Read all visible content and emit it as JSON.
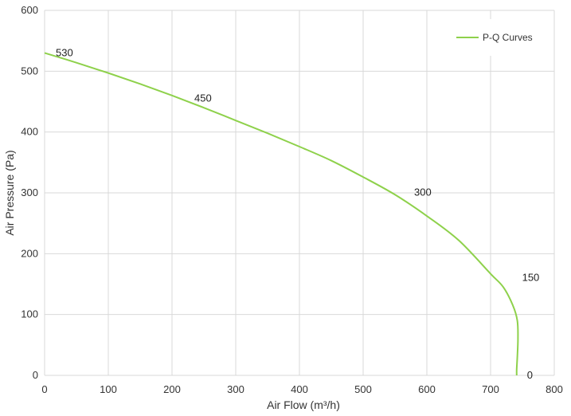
{
  "chart_data": {
    "type": "line",
    "title": "",
    "xlabel": "Air Flow  (m³/h)",
    "ylabel": "Air Pressure  (Pa)",
    "xlim": [
      0,
      800
    ],
    "ylim": [
      0,
      600
    ],
    "xticks": [
      0,
      100,
      200,
      300,
      400,
      500,
      600,
      700,
      800
    ],
    "yticks": [
      0,
      100,
      200,
      300,
      400,
      500,
      600
    ],
    "grid": true,
    "legend_position": "top-right",
    "series": [
      {
        "name": "P-Q Curves",
        "color": "#8ed14b",
        "x": [
          0,
          50,
          100,
          150,
          200,
          250,
          300,
          350,
          400,
          450,
          500,
          550,
          600,
          650,
          700,
          720,
          735,
          742,
          743,
          742,
          741,
          741
        ],
        "y": [
          530,
          514,
          497,
          479,
          460,
          440,
          419,
          398,
          376,
          353,
          326,
          297,
          262,
          222,
          167,
          145,
          115,
          90,
          60,
          30,
          10,
          0
        ]
      }
    ],
    "annotations": [
      {
        "text": "530",
        "x": 0,
        "y": 530
      },
      {
        "text": "450",
        "x": 240,
        "y": 445
      },
      {
        "text": "300",
        "x": 590,
        "y": 290
      },
      {
        "text": "150",
        "x": 742,
        "y": 142
      },
      {
        "text": "0",
        "x": 741,
        "y": 0
      }
    ]
  }
}
